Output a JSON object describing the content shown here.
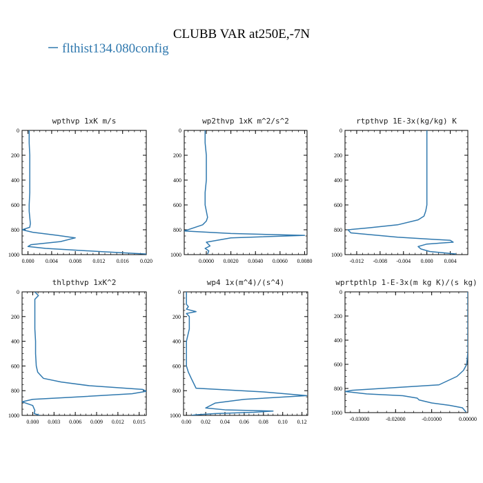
{
  "figure": {
    "title": "CLUBB VAR at250E,-7N",
    "legend_label": "flthist134.080config",
    "series_color": "#2f78ae"
  },
  "chart_data": [
    {
      "type": "line",
      "title": "wpthvp   1xK m/s",
      "xlabel": "",
      "ylabel": "",
      "xlim": [
        -0.001,
        0.02
      ],
      "ylim": [
        1000,
        0
      ],
      "xticks": [
        0.0,
        0.004,
        0.008,
        0.012,
        0.016,
        0.02
      ],
      "xtick_labels": [
        "0.000",
        "0.004",
        "0.008",
        "0.012",
        "0.016",
        "0.020"
      ],
      "yticks": [
        0,
        200,
        400,
        600,
        800,
        1000
      ],
      "ytick_labels": [
        "0",
        "200",
        "400",
        "600",
        "800",
        "1000"
      ],
      "grid": false,
      "series": [
        {
          "x": [
            0.0002,
            0.0002,
            0.0003,
            0.0003,
            0.0003,
            0.0003,
            0.0002,
            0.0002,
            0.0003,
            0.0004,
            0.0003,
            -0.001,
            0.0008,
            0.005,
            0.008,
            0.0055,
            0.0005,
            0.0,
            0.003,
            0.012,
            0.02
          ],
          "y": [
            0,
            100,
            200,
            300,
            400,
            500,
            600,
            650,
            700,
            750,
            780,
            800,
            820,
            845,
            865,
            895,
            920,
            935,
            950,
            975,
            995
          ]
        }
      ]
    },
    {
      "type": "line",
      "title": "wp2thvp   1xK m^2/s^2",
      "xlabel": "",
      "ylabel": "",
      "xlim": [
        -0.0018,
        0.0082
      ],
      "ylim": [
        1000,
        0
      ],
      "xticks": [
        0.0,
        0.002,
        0.004,
        0.006,
        0.008
      ],
      "xtick_labels": [
        "0.0000",
        "0.0020",
        "0.0040",
        "0.0060",
        "0.0080"
      ],
      "yticks": [
        0,
        200,
        400,
        600,
        800,
        1000
      ],
      "ytick_labels": [
        "0",
        "200",
        "400",
        "600",
        "800",
        "1000"
      ],
      "grid": false,
      "series": [
        {
          "x": [
            -0.0001,
            -0.0001,
            0.0,
            0.0,
            0.0,
            -0.0001,
            -0.0001,
            0.0,
            0.0001,
            0.0,
            -0.0003,
            -0.0018,
            0.002,
            0.008,
            0.002,
            0.0,
            0.0003,
            -0.0001,
            0.0002,
            0.0001
          ],
          "y": [
            0,
            100,
            200,
            300,
            400,
            500,
            600,
            650,
            700,
            730,
            760,
            810,
            830,
            845,
            865,
            900,
            930,
            950,
            970,
            995
          ]
        }
      ]
    },
    {
      "type": "line",
      "title": "rtpthvp   1E-3x(kg/kg) K",
      "xlabel": "",
      "ylabel": "",
      "xlim": [
        -0.014,
        0.007
      ],
      "ylim": [
        1000,
        0
      ],
      "xticks": [
        -0.012,
        -0.008,
        -0.004,
        0.0,
        0.004
      ],
      "xtick_labels": [
        "-0.012",
        "-0.008",
        "-0.004",
        "0.000",
        "0.004"
      ],
      "yticks": [
        0,
        200,
        400,
        600,
        800,
        1000
      ],
      "ytick_labels": [
        "0",
        "200",
        "400",
        "600",
        "800",
        "1000"
      ],
      "grid": false,
      "series": [
        {
          "x": [
            0.0,
            0.0,
            0.0,
            0.0,
            0.0,
            0.0,
            0.0,
            -0.0002,
            -0.0005,
            -0.0015,
            -0.005,
            -0.01,
            -0.0135,
            -0.013,
            -0.005,
            0.004,
            0.0045,
            0.0,
            -0.0015,
            -0.001,
            0.0005,
            0.005
          ],
          "y": [
            0,
            100,
            200,
            300,
            400,
            500,
            600,
            650,
            690,
            720,
            760,
            785,
            800,
            825,
            860,
            885,
            900,
            915,
            935,
            955,
            975,
            995
          ]
        }
      ]
    },
    {
      "type": "line",
      "title": "thlpthvp   1xK^2",
      "xlabel": "",
      "ylabel": "",
      "xlim": [
        -0.0015,
        0.016
      ],
      "ylim": [
        1000,
        0
      ],
      "xticks": [
        0.0,
        0.003,
        0.006,
        0.009,
        0.012,
        0.015
      ],
      "xtick_labels": [
        "0.000",
        "0.003",
        "0.006",
        "0.009",
        "0.012",
        "0.015"
      ],
      "yticks": [
        0,
        200,
        400,
        600,
        800,
        1000
      ],
      "ytick_labels": [
        "0",
        "200",
        "400",
        "600",
        "800",
        "1000"
      ],
      "grid": false,
      "series": [
        {
          "x": [
            0.0003,
            0.0008,
            0.0003,
            0.0003,
            0.0003,
            0.0003,
            0.0004,
            0.0004,
            0.0005,
            0.0007,
            0.0015,
            0.004,
            0.008,
            0.0155,
            0.016,
            0.014,
            0.005,
            0.0,
            -0.0015,
            0.0,
            0.0003,
            0.0002,
            0.001
          ],
          "y": [
            0,
            30,
            60,
            100,
            200,
            300,
            400,
            500,
            600,
            650,
            700,
            730,
            760,
            790,
            805,
            825,
            855,
            870,
            890,
            920,
            960,
            985,
            1000
          ]
        }
      ]
    },
    {
      "type": "line",
      "title": "wp4   1x(m^4)/(s^4)",
      "xlabel": "",
      "ylabel": "",
      "xlim": [
        -0.003,
        0.126
      ],
      "ylim": [
        1000,
        0
      ],
      "xticks": [
        0.0,
        0.02,
        0.04,
        0.06,
        0.08,
        0.1,
        0.12
      ],
      "xtick_labels": [
        "0.00",
        "0.02",
        "0.04",
        "0.06",
        "0.08",
        "0.10",
        "0.12"
      ],
      "yticks": [
        0,
        200,
        400,
        600,
        800,
        1000
      ],
      "ytick_labels": [
        "0",
        "200",
        "400",
        "600",
        "800",
        "1000"
      ],
      "grid": false,
      "series": [
        {
          "x": [
            0.0,
            0.0,
            0.0,
            0.002,
            0.0,
            0.01,
            0.0,
            0.003,
            0.003,
            0.0,
            0.0,
            0.0,
            0.002,
            0.005,
            0.01,
            0.08,
            0.125,
            0.06,
            0.03,
            0.02,
            0.04,
            0.09,
            0.07,
            0.03,
            0.01,
            0.005
          ],
          "y": [
            0,
            50,
            100,
            120,
            140,
            160,
            175,
            200,
            300,
            400,
            500,
            600,
            650,
            700,
            780,
            810,
            840,
            870,
            900,
            940,
            955,
            965,
            975,
            985,
            995,
            1000
          ]
        }
      ]
    },
    {
      "type": "line",
      "title": "wprtpthlp   1-E-3x(m kg K)/(s kg)",
      "xlabel": "",
      "ylabel": "",
      "xlim": [
        -0.034,
        0.0
      ],
      "ylim": [
        1000,
        0
      ],
      "xticks": [
        -0.03,
        -0.02,
        -0.01,
        0.0
      ],
      "xtick_labels": [
        "-0.03000",
        "-0.02000",
        "-0.01000",
        "0.00000"
      ],
      "yticks": [
        0,
        200,
        400,
        600,
        800,
        1000
      ],
      "ytick_labels": [
        "0",
        "200",
        "400",
        "600",
        "800",
        "1000"
      ],
      "grid": false,
      "series": [
        {
          "x": [
            0.0,
            0.0,
            0.0,
            0.0,
            0.0,
            0.0,
            -0.0003,
            -0.0012,
            -0.003,
            -0.008,
            -0.024,
            -0.032,
            -0.034,
            -0.028,
            -0.018,
            -0.014,
            -0.0135,
            -0.01,
            -0.005,
            -0.0015,
            -0.0005
          ],
          "y": [
            0,
            100,
            200,
            300,
            400,
            500,
            600,
            650,
            700,
            770,
            800,
            815,
            825,
            845,
            860,
            880,
            895,
            920,
            940,
            960,
            995
          ]
        }
      ]
    }
  ]
}
